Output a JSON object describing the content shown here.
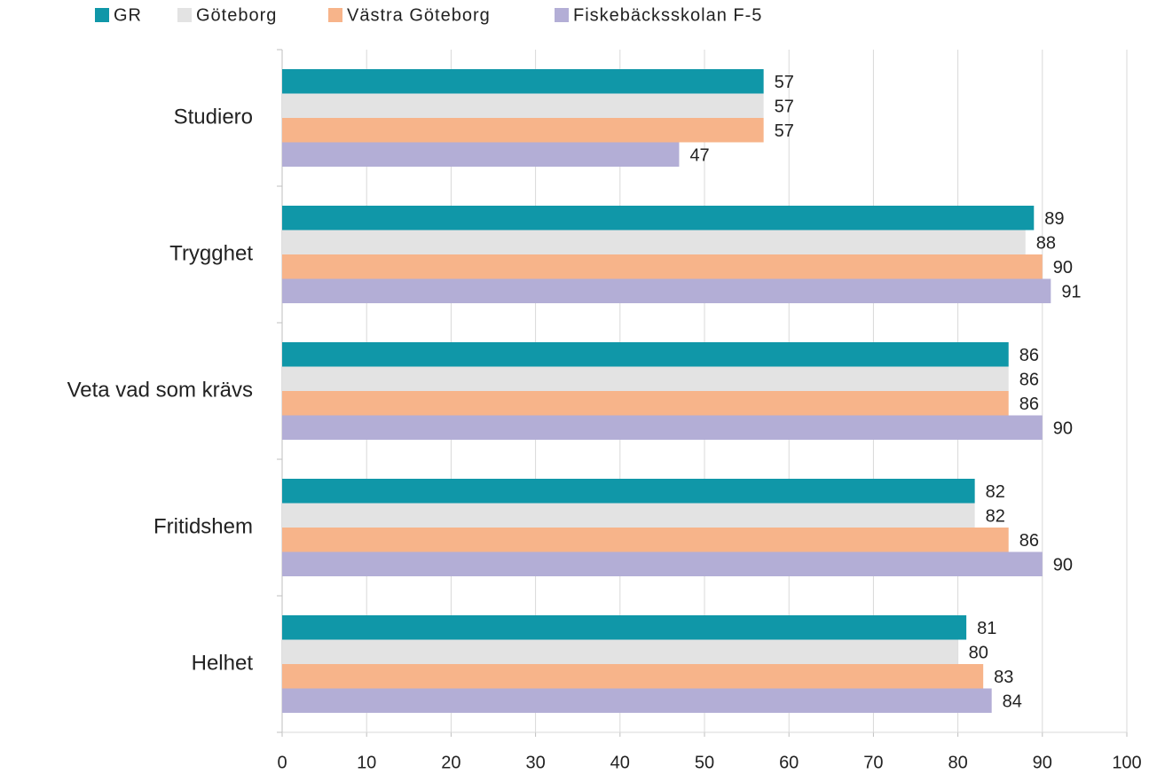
{
  "chart_data": {
    "type": "barh",
    "categories": [
      "Studiero",
      "Trygghet",
      "Veta vad som krävs",
      "Fritidshem",
      "Helhet"
    ],
    "series": [
      {
        "name": "GR",
        "color": "#1097a8",
        "values": [
          57,
          89,
          86,
          82,
          81
        ]
      },
      {
        "name": "Göteborg",
        "color": "#e3e3e3",
        "values": [
          57,
          88,
          86,
          82,
          80
        ]
      },
      {
        "name": "Västra Göteborg",
        "color": "#f7b48a",
        "values": [
          57,
          90,
          86,
          86,
          83
        ]
      },
      {
        "name": "Fiskebäcksskolan F-5",
        "color": "#b3aed6",
        "values": [
          47,
          91,
          90,
          90,
          84
        ]
      }
    ],
    "xlim": [
      0,
      100
    ],
    "xticks": [
      0,
      10,
      20,
      30,
      40,
      50,
      60,
      70,
      80,
      90,
      100
    ],
    "grid": true,
    "legend": "top"
  }
}
